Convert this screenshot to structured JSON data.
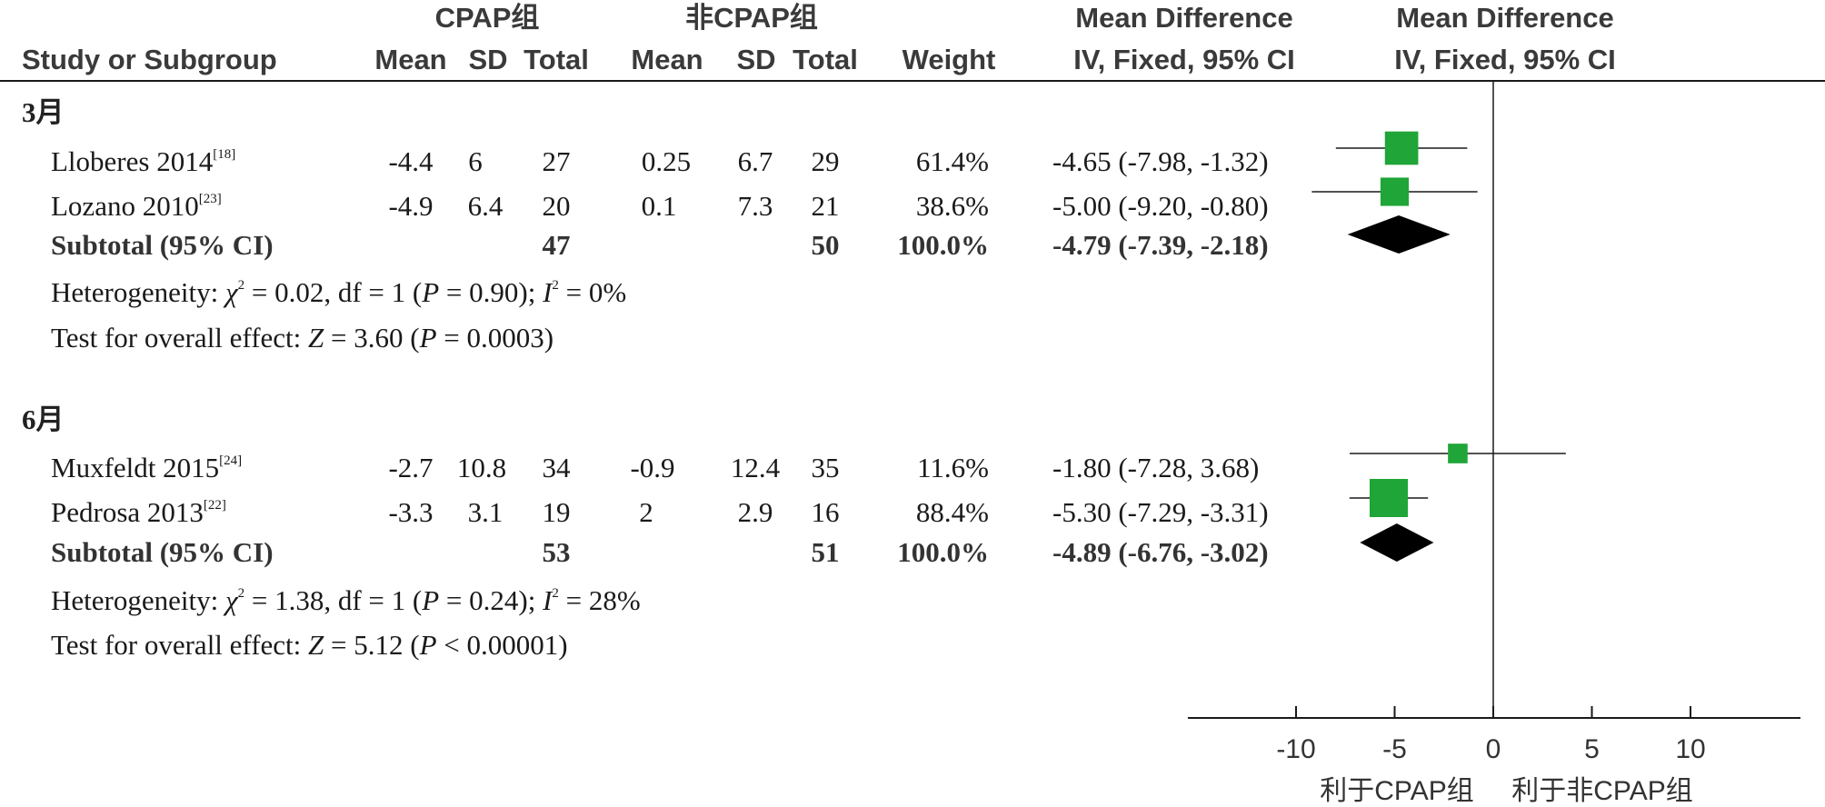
{
  "headers": {
    "group1": "CPAP组",
    "group2": "非CPAP组",
    "md_title": "Mean Difference",
    "md_method": "IV, Fixed, 95% CI",
    "plot_title": "Mean Difference",
    "plot_method": "IV, Fixed, 95% CI",
    "study": "Study or Subgroup",
    "mean": "Mean",
    "sd": "SD",
    "total": "Total",
    "weight": "Weight"
  },
  "subgroups": [
    {
      "label": "3月",
      "studies": [
        {
          "name": "Lloberes 2014",
          "ref": "[18]",
          "m1": "-4.4",
          "sd1": "6",
          "n1": "27",
          "m2": "0.25",
          "sd2": "6.7",
          "n2": "29",
          "weight": "61.4%",
          "ci": "-4.65 (-7.98, -1.32)"
        },
        {
          "name": "Lozano 2010",
          "ref": "[23]",
          "m1": "-4.9",
          "sd1": "6.4",
          "n1": "20",
          "m2": "0.1",
          "sd2": "7.3",
          "n2": "21",
          "weight": "38.6%",
          "ci": "-5.00 (-9.20, -0.80)"
        }
      ],
      "subtotal": {
        "label": "Subtotal (95% CI)",
        "n1": "47",
        "n2": "50",
        "weight": "100.0%",
        "ci": "-4.79 (-7.39, -2.18)"
      },
      "het": {
        "prefix": "Heterogeneity: ",
        "chi": "χ",
        "chi_sup": "2",
        "chi_val": " = 0.02, df = 1 (",
        "p": "P",
        "p_val": " = 0.90); ",
        "i": "I",
        "i_sup": "2",
        "i_val": " = 0%"
      },
      "overall": {
        "prefix": "Test for overall effect: ",
        "z": "Z",
        "z_val": " = 3.60 (",
        "p": "P",
        "p_val": " = 0.0003)"
      }
    },
    {
      "label": "6月",
      "studies": [
        {
          "name": "Muxfeldt 2015",
          "ref": "[24]",
          "m1": "-2.7",
          "sd1": "10.8",
          "n1": "34",
          "m2": "-0.9",
          "sd2": "12.4",
          "n2": "35",
          "weight": "11.6%",
          "ci": "-1.80 (-7.28, 3.68)"
        },
        {
          "name": "Pedrosa 2013",
          "ref": "[22]",
          "m1": "-3.3",
          "sd1": "3.1",
          "n1": "19",
          "m2": "2",
          "sd2": "2.9",
          "n2": "16",
          "weight": "88.4%",
          "ci": "-5.30 (-7.29, -3.31)"
        }
      ],
      "subtotal": {
        "label": "Subtotal (95% CI)",
        "n1": "53",
        "n2": "51",
        "weight": "100.0%",
        "ci": "-4.89 (-6.76, -3.02)"
      },
      "het": {
        "prefix": "Heterogeneity: ",
        "chi": "χ",
        "chi_sup": "2",
        "chi_val": " = 1.38, df = 1 (",
        "p": "P",
        "p_val": " = 0.24); ",
        "i": "I",
        "i_sup": "2",
        "i_val": " = 28%"
      },
      "overall": {
        "prefix": "Test for overall effect: ",
        "z": "Z",
        "z_val": " = 5.12 (",
        "p": "P",
        "p_val": " < 0.00001)"
      }
    }
  ],
  "axis": {
    "ticks": [
      "-10",
      "-5",
      "0",
      "5",
      "10"
    ],
    "favours_left": "利于CPAP组",
    "favours_right": "利于非CPAP组"
  },
  "colors": {
    "square": "#1fa538",
    "diamond": "#000000",
    "line": "#1a1a1a"
  },
  "chart_data": {
    "type": "forest",
    "xlim": [
      -15,
      15
    ],
    "ticks": [
      -10,
      -5,
      0,
      5,
      10
    ],
    "studies": [
      {
        "group": "3月",
        "study": "Lloberes 2014",
        "md": -4.65,
        "lo": -7.98,
        "hi": -1.32,
        "weight": 61.4
      },
      {
        "group": "3月",
        "study": "Lozano 2010",
        "md": -5.0,
        "lo": -9.2,
        "hi": -0.8,
        "weight": 38.6
      },
      {
        "group": "6月",
        "study": "Muxfeldt 2015",
        "md": -1.8,
        "lo": -7.28,
        "hi": 3.68,
        "weight": 11.6
      },
      {
        "group": "6月",
        "study": "Pedrosa 2013",
        "md": -5.3,
        "lo": -7.29,
        "hi": -3.31,
        "weight": 88.4
      }
    ],
    "subtotals": [
      {
        "group": "3月",
        "md": -4.79,
        "lo": -7.39,
        "hi": -2.18
      },
      {
        "group": "6月",
        "md": -4.89,
        "lo": -6.76,
        "hi": -3.02
      }
    ]
  }
}
